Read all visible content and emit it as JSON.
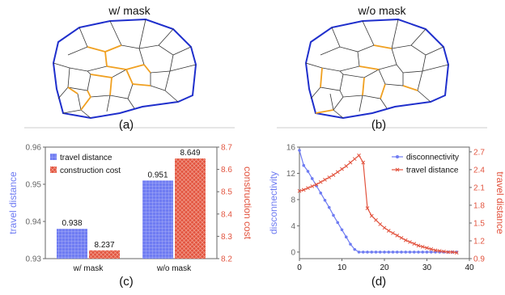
{
  "panels": {
    "a": {
      "title": "w/ mask",
      "label": "(a)"
    },
    "b": {
      "title": "w/o mask",
      "label": "(b)"
    },
    "c": {
      "label": "(c)"
    },
    "d": {
      "label": "(d)"
    }
  },
  "colors": {
    "boundary": "#1f2fcc",
    "cell": "#333333",
    "highlight": "#f0a020",
    "blue": "#6f7cf2",
    "red": "#e2533e",
    "axis": "#666666"
  },
  "chart_data": [
    {
      "type": "bar",
      "categories": [
        "w/ mask",
        "w/o mask"
      ],
      "series": [
        {
          "name": "travel distance",
          "axis": "left",
          "values": [
            0.938,
            0.951
          ],
          "labels": [
            "0.938",
            "0.951"
          ]
        },
        {
          "name": "construction cost",
          "axis": "right",
          "values": [
            8.237,
            8.649
          ],
          "labels": [
            "8.237",
            "8.649"
          ]
        }
      ],
      "ylabel_left": "travel distance",
      "ylabel_right": "construction cost",
      "ylim_left": [
        0.93,
        0.96
      ],
      "ylim_right": [
        8.2,
        8.7
      ],
      "yticks_left": [
        "0.93",
        "0.94",
        "0.95",
        "0.96"
      ],
      "yticks_right": [
        "8.2",
        "8.3",
        "8.4",
        "8.5",
        "8.6",
        "8.7"
      ],
      "legend_position": "top-left"
    },
    {
      "type": "line",
      "series": [
        {
          "name": "disconnectivity",
          "axis": "left",
          "marker": "circle",
          "x": [
            0,
            1,
            2,
            3,
            4,
            5,
            6,
            7,
            8,
            9,
            10,
            11,
            12,
            13,
            14,
            15,
            16,
            17,
            18,
            19,
            20,
            21,
            22,
            23,
            24,
            25,
            26,
            27,
            28,
            29,
            30,
            31,
            32,
            33,
            34,
            35,
            36,
            37
          ],
          "y": [
            15.5,
            13.2,
            12.3,
            11.2,
            10.1,
            9.0,
            7.9,
            6.8,
            5.6,
            4.5,
            3.4,
            2.3,
            1.2,
            0.4,
            0,
            0,
            0,
            0,
            0,
            0,
            0,
            0,
            0,
            0,
            0,
            0,
            0,
            0,
            0,
            0,
            0,
            0,
            0,
            0,
            0,
            0,
            0,
            0
          ]
        },
        {
          "name": "travel distance",
          "axis": "right",
          "marker": "x",
          "x": [
            0,
            1,
            2,
            3,
            4,
            5,
            6,
            7,
            8,
            9,
            10,
            11,
            12,
            13,
            14,
            15,
            16,
            17,
            18,
            19,
            20,
            21,
            22,
            23,
            24,
            25,
            26,
            27,
            28,
            29,
            30,
            31,
            32,
            33,
            34,
            35,
            36,
            37
          ],
          "y": [
            2.04,
            2.06,
            2.09,
            2.12,
            2.15,
            2.19,
            2.23,
            2.27,
            2.31,
            2.36,
            2.41,
            2.46,
            2.52,
            2.58,
            2.64,
            2.52,
            1.75,
            1.62,
            1.55,
            1.48,
            1.42,
            1.37,
            1.33,
            1.29,
            1.25,
            1.21,
            1.18,
            1.15,
            1.12,
            1.1,
            1.08,
            1.06,
            1.04,
            1.03,
            1.02,
            1.01,
            1.01,
            1.0
          ]
        }
      ],
      "xlim": [
        0,
        40
      ],
      "ylim_left": [
        -1,
        16
      ],
      "ylim_right": [
        0.9,
        2.78
      ],
      "xticks": [
        "0",
        "10",
        "20",
        "30",
        "40"
      ],
      "yticks_left": [
        "0",
        "4",
        "8",
        "12",
        "16"
      ],
      "yticks_right": [
        "0.9",
        "1.2",
        "1.5",
        "1.8",
        "2.1",
        "2.4",
        "2.7"
      ],
      "ylabel_left": "disconnectivity",
      "ylabel_right": "travel distance",
      "legend_position": "top-right"
    }
  ]
}
